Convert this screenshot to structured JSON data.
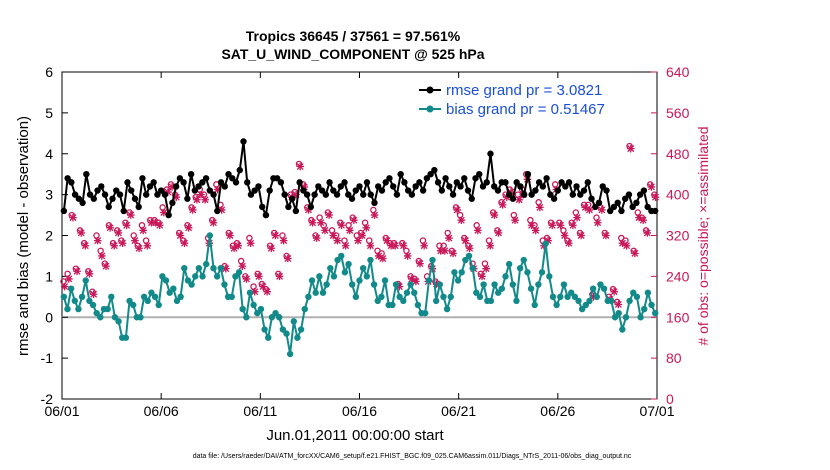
{
  "chart_data": {
    "type": "line",
    "title": "Tropics 36645 / 37561 = 97.561%",
    "subtitle": "SAT_U_WIND_COMPONENT @ 525 hPa",
    "xlabel": "Jun.01,2011 00:00:00 start",
    "ylabel": "rmse and bias (model - observation)",
    "ylabel_right": "# of obs: o=possible; ×=assimilated",
    "xlim": [
      0,
      30
    ],
    "ylim": [
      -2,
      6
    ],
    "ylim_right": [
      0,
      640
    ],
    "x_ticks": [
      0,
      5,
      10,
      15,
      20,
      25,
      30
    ],
    "x_ticklabels": [
      "06/01",
      "06/06",
      "06/11",
      "06/16",
      "06/21",
      "06/26",
      "07/01"
    ],
    "y_ticks": [
      -2,
      -1,
      0,
      1,
      2,
      3,
      4,
      5,
      6
    ],
    "y_ticklabels": [
      "-2",
      "-1",
      "0",
      "1",
      "2",
      "3",
      "4",
      "5",
      "6"
    ],
    "y_right_ticks": [
      0,
      80,
      160,
      240,
      320,
      400,
      480,
      560,
      640
    ],
    "y_right_ticklabels": [
      "0",
      "80",
      "160",
      "240",
      "320",
      "400",
      "480",
      "560",
      "640"
    ],
    "zero_line": 0,
    "legend_position": "top-right",
    "colors": {
      "rmse": "#000000",
      "bias": "#138a8a",
      "obs": "#c8185a",
      "zero": "#b0b0b0",
      "legend_text": "#1a4fd6"
    },
    "series": [
      {
        "name": "rmse grand pr = 3.0821",
        "key": "rmse",
        "values": [
          2.6,
          3.4,
          3.3,
          3.0,
          2.9,
          2.8,
          3.5,
          3.0,
          2.9,
          3.1,
          3.2,
          3.0,
          2.7,
          2.9,
          3.1,
          3.0,
          2.6,
          3.3,
          3.1,
          2.9,
          2.7,
          3.4,
          3.0,
          3.2,
          3.3,
          3.0,
          3.1,
          3.0,
          2.5,
          2.8,
          3.2,
          3.4,
          3.3,
          2.9,
          3.5,
          3.1,
          3.2,
          3.3,
          3.4,
          3.1,
          3.0,
          2.6,
          3.3,
          3.2,
          3.5,
          3.4,
          3.3,
          3.6,
          4.3,
          3.3,
          3.0,
          3.1,
          3.2,
          2.7,
          2.5,
          3.1,
          3.4,
          3.4,
          3.3,
          3.0,
          2.7,
          2.9,
          2.6,
          3.3,
          3.1,
          3.0,
          2.7,
          3.0,
          3.2,
          3.1,
          3.0,
          3.3,
          3.1,
          3.0,
          3.2,
          3.3,
          3.0,
          2.9,
          3.1,
          3.2,
          3.0,
          3.3,
          3.0,
          2.8,
          3.2,
          3.1,
          3.3,
          3.4,
          3.2,
          3.0,
          3.5,
          3.3,
          3.1,
          3.0,
          3.2,
          3.3,
          3.1,
          3.4,
          3.5,
          3.6,
          3.3,
          3.1,
          3.4,
          3.2,
          3.0,
          3.3,
          3.2,
          3.4,
          3.1,
          2.9,
          3.4,
          3.5,
          3.2,
          3.3,
          4.0,
          3.2,
          3.1,
          3.3,
          3.3,
          3.0,
          2.9,
          3.3,
          3.2,
          3.0,
          3.5,
          3.0,
          3.1,
          3.3,
          3.2,
          3.4,
          3.0,
          2.9,
          3.1,
          3.3,
          3.2,
          3.3,
          3.0,
          3.2,
          3.0,
          3.1,
          3.3,
          2.9,
          2.7,
          2.8,
          3.2,
          3.1,
          2.6,
          2.7,
          2.8,
          2.6,
          2.9,
          3.0,
          2.7,
          2.8,
          3.0,
          3.1,
          2.7,
          2.6,
          2.6
        ]
      },
      {
        "name": "bias grand pr = 0.51467",
        "key": "bias",
        "values": [
          0.5,
          0.2,
          0.7,
          0.4,
          0.2,
          0.5,
          0.9,
          0.4,
          0.3,
          0.1,
          0.0,
          0.2,
          0.2,
          0.5,
          0.0,
          -0.1,
          -0.5,
          -0.5,
          0.4,
          0.3,
          0.0,
          0.0,
          0.5,
          0.4,
          0.6,
          0.5,
          0.3,
          1.0,
          0.9,
          0.6,
          0.7,
          0.4,
          0.5,
          1.2,
          0.9,
          0.8,
          1.0,
          1.2,
          1.0,
          1.3,
          2.0,
          1.2,
          1.0,
          1.2,
          0.8,
          0.5,
          0.5,
          1.0,
          1.1,
          0.2,
          0.0,
          0.6,
          0.3,
          0.1,
          0.2,
          -0.3,
          -0.5,
          0.0,
          0.1,
          0.0,
          -0.3,
          -0.4,
          -0.9,
          -0.1,
          -0.5,
          -0.3,
          0.2,
          0.5,
          0.9,
          0.6,
          1.0,
          0.6,
          0.8,
          1.2,
          1.0,
          1.4,
          1.5,
          1.1,
          1.3,
          0.8,
          0.5,
          0.9,
          1.2,
          1.0,
          1.4,
          0.8,
          0.4,
          0.5,
          0.9,
          0.3,
          0.3,
          0.8,
          0.5,
          0.4,
          0.6,
          0.8,
          0.6,
          0.3,
          0.1,
          0.1,
          0.9,
          1.4,
          0.4,
          0.8,
          0.5,
          0.2,
          0.5,
          1.1,
          0.9,
          1.1,
          1.4,
          1.5,
          1.2,
          0.6,
          0.5,
          0.8,
          0.4,
          0.4,
          0.8,
          0.6,
          0.7,
          1.0,
          1.3,
          0.8,
          0.4,
          1.2,
          1.4,
          1.1,
          0.7,
          0.3,
          0.8,
          1.1,
          1.8,
          1.0,
          0.5,
          0.3,
          0.5,
          0.8,
          0.5,
          0.6,
          0.5,
          0.4,
          0.2,
          0.3,
          0.4,
          0.7,
          0.5,
          0.8,
          0.7,
          0.4,
          0.4,
          0.0,
          0.1,
          -0.3,
          0.0,
          0.4,
          0.6,
          0.5,
          0.0,
          0.2,
          0.6,
          0.3,
          0.1
        ]
      },
      {
        "name": "# of obs possible",
        "key": "possible",
        "axis": "right",
        "marker": "o",
        "values": [
          230,
          245,
          360,
          255,
          330,
          305,
          250,
          210,
          320,
          290,
          265,
          340,
          305,
          330,
          310,
          345,
          365,
          320,
          300,
          340,
          310,
          350,
          350,
          345,
          375,
          410,
          420,
          400,
          325,
          310,
          340,
          375,
          395,
          410,
          400,
          315,
          350,
          420,
          380,
          260,
          325,
          300,
          305,
          270,
          240,
          315,
          220,
          245,
          225,
          215,
          300,
          325,
          245,
          320,
          280,
          400,
          405,
          460,
          420,
          375,
          350,
          320,
          355,
          340,
          365,
          330,
          320,
          345,
          310,
          340,
          355,
          320,
          325,
          345,
          310,
          370,
          290,
          285,
          315,
          305,
          305,
          225,
          305,
          290,
          240,
          235,
          270,
          310,
          240,
          260,
          230,
          300,
          300,
          325,
          290,
          375,
          360,
          315,
          300,
          265,
          340,
          245,
          265,
          310,
          365,
          330,
          385,
          400,
          410,
          360,
          400,
          410,
          440,
          350,
          340,
          385,
          310,
          315,
          345,
          420,
          345,
          330,
          310,
          345,
          365,
          325,
          380,
          380,
          205,
          355,
          375,
          325,
          200,
          215,
          190,
          315,
          310,
          495,
          290,
          365,
          355,
          330,
          420,
          400
        ]
      },
      {
        "name": "# of obs assimilated",
        "key": "assimilated",
        "axis": "right",
        "marker": "x",
        "values": [
          220,
          235,
          355,
          250,
          325,
          300,
          245,
          205,
          310,
          280,
          260,
          335,
          300,
          325,
          305,
          340,
          360,
          310,
          295,
          330,
          300,
          345,
          345,
          340,
          365,
          405,
          415,
          395,
          320,
          305,
          335,
          370,
          390,
          400,
          390,
          305,
          345,
          410,
          370,
          255,
          320,
          295,
          300,
          260,
          235,
          305,
          210,
          240,
          220,
          210,
          295,
          320,
          240,
          310,
          275,
          395,
          400,
          455,
          415,
          370,
          345,
          315,
          345,
          330,
          360,
          320,
          310,
          340,
          300,
          330,
          350,
          310,
          320,
          335,
          300,
          360,
          280,
          275,
          310,
          300,
          300,
          220,
          300,
          280,
          235,
          230,
          265,
          300,
          230,
          255,
          225,
          290,
          290,
          315,
          285,
          370,
          350,
          310,
          295,
          255,
          330,
          240,
          255,
          300,
          360,
          325,
          380,
          395,
          405,
          350,
          390,
          400,
          430,
          340,
          330,
          375,
          300,
          310,
          340,
          410,
          340,
          320,
          305,
          340,
          355,
          320,
          375,
          370,
          200,
          345,
          370,
          320,
          195,
          210,
          185,
          305,
          300,
          490,
          285,
          355,
          350,
          325,
          415,
          395
        ]
      }
    ]
  },
  "footer": "data file: /Users/raeder/DAI/ATM_forcXX/CAM6_setup/f.e21.FHIST_BGC.f09_025.CAM6assim.011/Diags_NTrS_2011-06/obs_diag_output.nc"
}
